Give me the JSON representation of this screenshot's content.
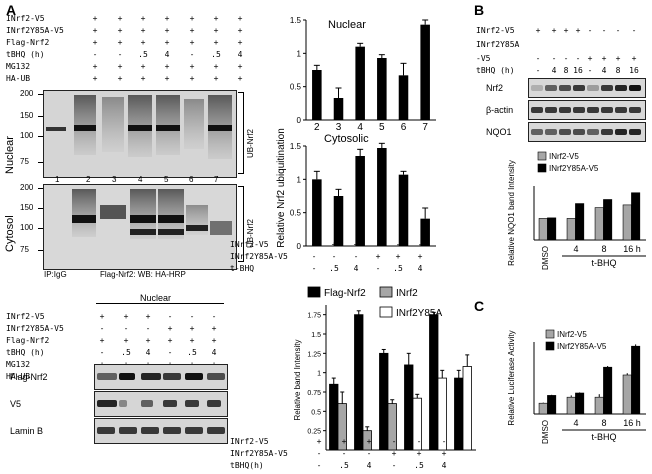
{
  "panel_labels": {
    "a": "A",
    "b": "B",
    "c": "C"
  },
  "a_top": {
    "rows": [
      {
        "label": "INrf2-V5",
        "vals": [
          "+",
          "+",
          "+",
          "+",
          "+",
          "+",
          "+"
        ]
      },
      {
        "label": "INrf2Y85A-V5",
        "vals": [
          "+",
          "+",
          "+",
          "+",
          "+",
          "+",
          "+"
        ]
      },
      {
        "label": "Flag-Nrf2",
        "vals": [
          "+",
          "+",
          "+",
          "+",
          "+",
          "+",
          "+"
        ]
      },
      {
        "label": "tBHQ (h)",
        "vals": [
          "-",
          "-",
          ".5",
          "4",
          "-",
          ".5",
          "4"
        ]
      },
      {
        "label": "MG132",
        "vals": [
          "+",
          "+",
          "+",
          "+",
          "+",
          "+",
          "+"
        ]
      },
      {
        "label": "HA-UB",
        "vals": [
          "+",
          "+",
          "+",
          "+",
          "+",
          "+",
          "+"
        ]
      }
    ],
    "nuclear_label": "Nuclear",
    "cytosol_label": "Cytosol",
    "ub_label": "UB-Nrf2",
    "mw_nuclear": [
      "200",
      "150",
      "100",
      "75"
    ],
    "mw_cytosol": [
      "200",
      "150",
      "100",
      "75"
    ],
    "lane_numbers": [
      "1",
      "2",
      "3",
      "4",
      "5",
      "6",
      "7"
    ],
    "ip_label": "IP:IgG",
    "ip_caption": "Flag-Nrf2: WB: HA-HRP"
  },
  "a_bottom": {
    "header": "Nuclear",
    "rows": [
      {
        "label": "INrf2-V5",
        "vals": [
          "+",
          "+",
          "+",
          "-",
          "-",
          "-"
        ]
      },
      {
        "label": "INrf2Y85A-V5",
        "vals": [
          "-",
          "-",
          "-",
          "+",
          "+",
          "+"
        ]
      },
      {
        "label": "Flag-Nrf2",
        "vals": [
          "+",
          "+",
          "+",
          "+",
          "+",
          "+"
        ]
      },
      {
        "label": "tBHQ (h)",
        "vals": [
          "-",
          ".5",
          "4",
          "-",
          ".5",
          "4"
        ]
      },
      {
        "label": "MG132",
        "vals": [
          "+",
          "+",
          "+",
          "+",
          "+",
          "+"
        ]
      },
      {
        "label": "HA-UB",
        "vals": [
          "+",
          "+",
          "+",
          "+",
          "+",
          "+"
        ]
      }
    ],
    "blots": [
      "Flag-Nrf2",
      "V5",
      "Lamin B"
    ]
  },
  "chart_data": [
    {
      "type": "bar",
      "id": "nrf2-ubiquitination",
      "ylabel": "Relative Nrf2 ubiquitination",
      "panels": [
        {
          "name": "Nuclear",
          "categories": [
            "2",
            "3",
            "4",
            "5",
            "6",
            "7"
          ],
          "values": [
            0.75,
            0.33,
            1.1,
            0.93,
            0.67,
            1.43
          ],
          "errors": [
            0.07,
            0.15,
            0.05,
            0.05,
            0.18,
            0.07
          ]
        },
        {
          "name": "Cytosolic",
          "categories": [
            "2",
            "3",
            "4",
            "5",
            "6",
            "7"
          ],
          "values": [
            1.0,
            0.75,
            1.35,
            1.47,
            1.07,
            0.41
          ],
          "errors": [
            0.12,
            0.1,
            0.1,
            0.07,
            0.05,
            0.16
          ]
        }
      ],
      "ylim": [
        0,
        1.5
      ],
      "yticks": [
        "0",
        "0.5",
        "1",
        "1.5"
      ],
      "table": [
        {
          "label": "INrf2-V5",
          "vals": [
            "+",
            "+",
            "+",
            "-",
            "-",
            "-"
          ]
        },
        {
          "label": "INrf2Y85A-V5",
          "vals": [
            "-",
            "-",
            "-",
            "+",
            "+",
            "+"
          ]
        },
        {
          "label": "t-BHQ",
          "vals": [
            "-",
            ".5",
            "4",
            "-",
            ".5",
            "4"
          ]
        }
      ]
    },
    {
      "type": "bar",
      "id": "band-intensity",
      "ylabel": "Relative band Intensity",
      "legend": [
        "Flag-Nrf2",
        "INrf2",
        "INrf2Y85A"
      ],
      "groups": 6,
      "series": [
        {
          "name": "Flag-Nrf2",
          "values": [
            0.85,
            1.75,
            1.25,
            1.1,
            1.75,
            0.93
          ],
          "errors": [
            0.08,
            0.05,
            0.05,
            0.15,
            0.03,
            0.1
          ]
        },
        {
          "name": "INrf2",
          "values": [
            0.6,
            0.25,
            0.6,
            null,
            null,
            null
          ],
          "errors": [
            0.15,
            0.05,
            0.05,
            null,
            null,
            null
          ]
        },
        {
          "name": "INrf2Y85A",
          "values": [
            null,
            null,
            null,
            0.67,
            0.93,
            1.08
          ],
          "errors": [
            null,
            null,
            null,
            0.05,
            0.1,
            0.15
          ]
        }
      ],
      "ylim": [
        0,
        1.875
      ],
      "yticks": [
        "0.25",
        "0.5",
        "0.75",
        "1",
        "1.25",
        "1.5",
        "1.75"
      ],
      "table": [
        {
          "label": "INrf2-V5",
          "vals": [
            "+",
            "+",
            "+",
            "-",
            "-",
            "-"
          ]
        },
        {
          "label": "INrf2Y85A-V5",
          "vals": [
            "-",
            "-",
            "-",
            "+",
            "+",
            "+"
          ]
        },
        {
          "label": "tBHQ(h)",
          "vals": [
            "-",
            ".5",
            "4",
            "-",
            ".5",
            "4"
          ]
        }
      ]
    },
    {
      "type": "bar",
      "id": "nqo1-band",
      "ylabel": "Relative NQO1 band Intensity",
      "legend": [
        "INrf2-V5",
        "INrf2Y85A-V5"
      ],
      "categories": [
        "DMSO",
        "4",
        "8",
        "16 h"
      ],
      "xlabel": "t-BHQ",
      "series": [
        {
          "name": "INrf2-V5",
          "values": [
            0.8,
            0.8,
            1.2,
            1.3
          ]
        },
        {
          "name": "INrf2Y85A-V5",
          "values": [
            0.82,
            1.35,
            1.5,
            1.75
          ]
        }
      ],
      "ylim": [
        0,
        2
      ]
    },
    {
      "type": "bar",
      "id": "luciferase",
      "ylabel": "Relative Luciferase Activity",
      "legend": [
        "INrf2-V5",
        "INrf2Y85A-V5"
      ],
      "categories": [
        "DMSO",
        "4",
        "8",
        "16 h"
      ],
      "xlabel": "t-BHQ",
      "series": [
        {
          "name": "INrf2-V5",
          "values": [
            1.8,
            2.8,
            2.8,
            6.5
          ]
        },
        {
          "name": "INrf2Y85A-V5",
          "values": [
            3.1,
            3.5,
            7.8,
            11.3
          ]
        }
      ],
      "errors": [
        [
          0.1,
          0.3,
          0.5,
          0.3
        ],
        [
          0.1,
          0.1,
          0.2,
          0.3
        ]
      ],
      "ylim": [
        0,
        12
      ]
    }
  ],
  "b": {
    "rows": [
      {
        "label": "INrf2-V5",
        "vals": [
          "+",
          "+",
          "+",
          "+",
          "-",
          "-",
          "-",
          "-"
        ]
      },
      {
        "label": "INrf2Y85A",
        "vals": []
      },
      {
        "label": "-V5",
        "vals": [
          "-",
          "-",
          "-",
          "-",
          "+",
          "+",
          "+",
          "+"
        ]
      },
      {
        "label": "tBHQ (h)",
        "vals": [
          "-",
          "4",
          "8",
          "16",
          "-",
          "4",
          "8",
          "16"
        ]
      }
    ],
    "blots": [
      "Nrf2",
      "β-actin",
      "NQO1"
    ]
  },
  "colors": {
    "black": "#000000",
    "gray": "#a6a6a6",
    "white": "#ffffff"
  }
}
